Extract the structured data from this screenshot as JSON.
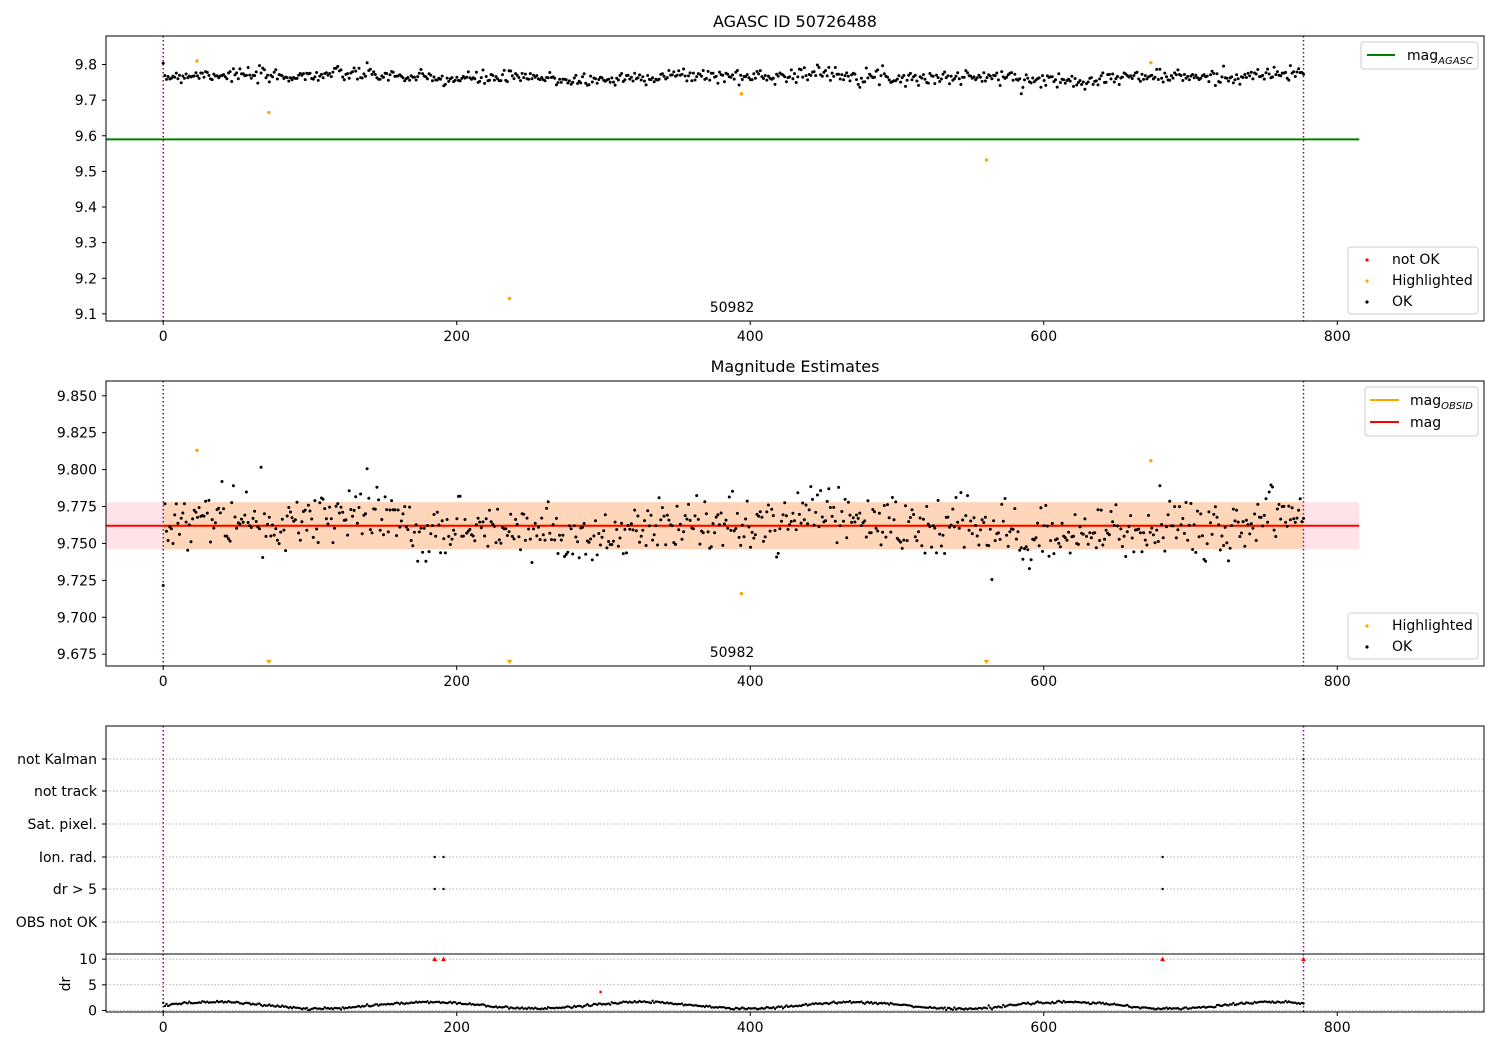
{
  "colors": {
    "ok": "#000000",
    "highlighted": "#ffa500",
    "not_ok": "#ff0000",
    "mag_agasc": "#008000",
    "mag_obsid": "#ffa500",
    "mag": "#ff0000",
    "obsid_boundary": "#800080",
    "band_outer": "#ffc0cb",
    "band_inner": "#ffa500",
    "grid": "#b0b0b0"
  },
  "chart_data": [
    {
      "type": "scatter",
      "title": "AGASC ID 50726488",
      "xlabel": "",
      "ylabel": "",
      "xlim": [
        -39,
        900
      ],
      "ylim": [
        9.08,
        9.88
      ],
      "xticks": [
        0,
        200,
        400,
        600,
        800
      ],
      "yticks": [
        9.1,
        9.2,
        9.3,
        9.4,
        9.5,
        9.6,
        9.7,
        9.8
      ],
      "obsid_label": "50982",
      "obsid_boundaries": [
        0,
        777
      ],
      "mag_agasc": {
        "label": "mag",
        "subscript": "AGASC",
        "value": 9.59,
        "x": [
          -39,
          815
        ]
      },
      "ok_series": {
        "label": "OK",
        "y_mean": 9.765,
        "y_scatter": 0.018,
        "x_range": [
          0,
          777
        ]
      },
      "highlighted": {
        "label": "Highlighted",
        "x": [
          23,
          72,
          236,
          394,
          561,
          673
        ],
        "y": [
          9.81,
          9.665,
          9.143,
          9.718,
          9.532,
          9.805
        ]
      },
      "not_ok": {
        "label": "not OK",
        "x": [],
        "y": []
      },
      "legend_upper": "top-right",
      "legend_lower": "bottom-right"
    },
    {
      "type": "scatter",
      "title": "Magnitude Estimates",
      "xlabel": "",
      "ylabel": "",
      "xlim": [
        -39,
        900
      ],
      "ylim": [
        9.667,
        9.86
      ],
      "xticks": [
        0,
        200,
        400,
        600,
        800
      ],
      "yticks": [
        9.675,
        9.7,
        9.725,
        9.75,
        9.775,
        9.8,
        9.825,
        9.85
      ],
      "obsid_label": "50982",
      "obsid_boundaries": [
        0,
        777
      ],
      "mag": {
        "label": "mag",
        "value": 9.762,
        "band_outer": [
          9.746,
          9.778
        ],
        "x": [
          -39,
          815
        ]
      },
      "mag_obsid": {
        "label": "mag",
        "subscript": "OBSID",
        "value": 9.762,
        "band_inner": [
          9.746,
          9.778
        ],
        "x": [
          0,
          777
        ]
      },
      "ok_series": {
        "label": "OK",
        "y_mean": 9.762,
        "y_scatter": 0.018,
        "x_range": [
          0,
          777
        ]
      },
      "highlighted": {
        "label": "Highlighted",
        "x": [
          23,
          394,
          673
        ],
        "y": [
          9.813,
          9.716,
          9.806
        ]
      },
      "out_of_range_markers_x": [
        72,
        236,
        561
      ],
      "legend_upper": "top-right",
      "legend_lower": "bottom-right"
    },
    {
      "type": "scatter",
      "title": "",
      "xlabel": "",
      "ylabel": "",
      "xlim": [
        -39,
        900
      ],
      "xticks": [
        0,
        200,
        400,
        600,
        800
      ],
      "categories": [
        "not Kalman",
        "not track",
        "Sat. pixel.",
        "Ion. rad.",
        "dr > 5",
        "OBS not OK"
      ],
      "obsid_boundaries": [
        0,
        777
      ],
      "flags": {
        "not Kalman": [
          777
        ],
        "not track": [],
        "Sat. pixel.": [],
        "Ion. rad.": [
          185,
          191,
          681
        ],
        "dr > 5": [
          185,
          191,
          681
        ],
        "OBS not OK": []
      }
    },
    {
      "type": "line",
      "title": "",
      "xlabel": "",
      "ylabel": "dr",
      "xlim": [
        -39,
        900
      ],
      "ylim": [
        -0.3,
        11
      ],
      "xticks": [
        0,
        200,
        400,
        600,
        800
      ],
      "yticks": [
        0,
        5,
        10
      ],
      "obsid_boundaries": [
        0,
        777
      ],
      "dr_typical": [
        0.2,
        1.8
      ],
      "dr_spike": {
        "x": [
          298
        ],
        "y": [
          3.6
        ]
      },
      "dr_clipped": {
        "x": [
          185,
          191,
          681,
          777
        ],
        "y": [
          10,
          10,
          10,
          10
        ]
      }
    }
  ]
}
